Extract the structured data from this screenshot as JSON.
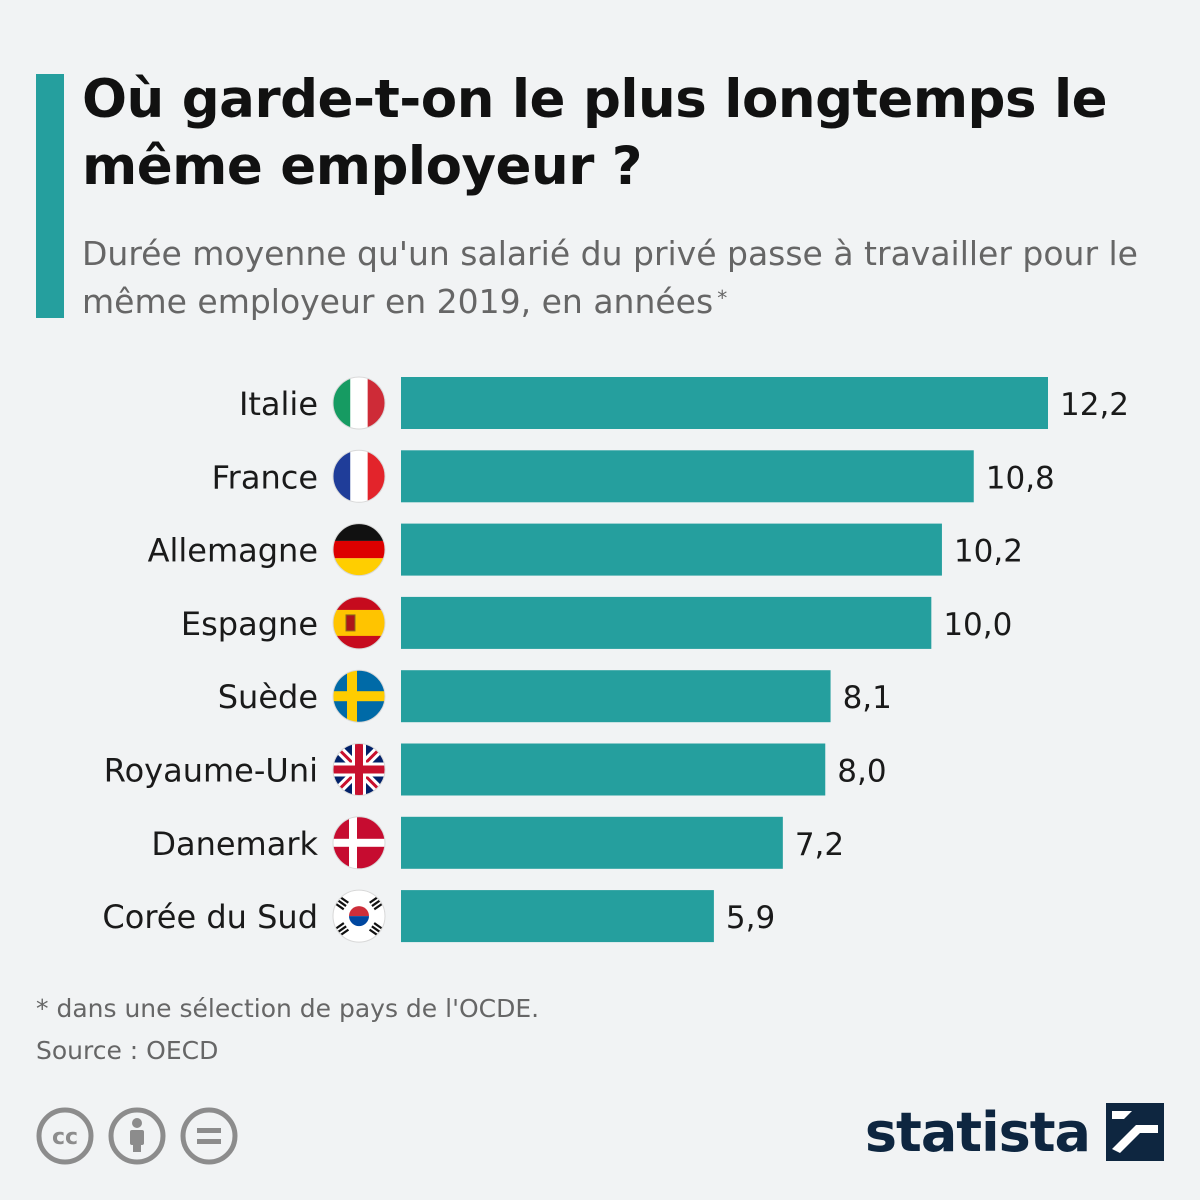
{
  "title": "Où garde-t-on le plus longtemps le même employeur ?",
  "subtitle": "Durée moyenne qu'un salarié du privé passe à travailler pour le même employeur en 2019, en années",
  "subtitle_mark": "*",
  "footnote": "* dans une sélection de pays de l'OCDE.",
  "source": "Source : OECD",
  "brand": "statista",
  "colors": {
    "bar": "#259f9e",
    "accent": "#259f9e",
    "background": "#f1f3f4",
    "brand": "#0e2640"
  },
  "license_icons": [
    "cc-icon",
    "attribution-icon",
    "no-derivatives-icon"
  ],
  "chart_data": {
    "type": "bar",
    "orientation": "horizontal",
    "categories": [
      "Italie",
      "France",
      "Allemagne",
      "Espagne",
      "Suède",
      "Royaume-Uni",
      "Danemark",
      "Corée du Sud"
    ],
    "flags": [
      "italy-flag-icon",
      "france-flag-icon",
      "germany-flag-icon",
      "spain-flag-icon",
      "sweden-flag-icon",
      "uk-flag-icon",
      "denmark-flag-icon",
      "south-korea-flag-icon"
    ],
    "values": [
      12.2,
      10.8,
      10.2,
      10.0,
      8.1,
      8.0,
      7.2,
      5.9
    ],
    "value_labels": [
      "12,2",
      "10,8",
      "10,2",
      "10,0",
      "8,1",
      "8,0",
      "7,2",
      "5,9"
    ],
    "xlim": [
      0,
      12.2
    ],
    "grid": false,
    "legend": "none"
  }
}
